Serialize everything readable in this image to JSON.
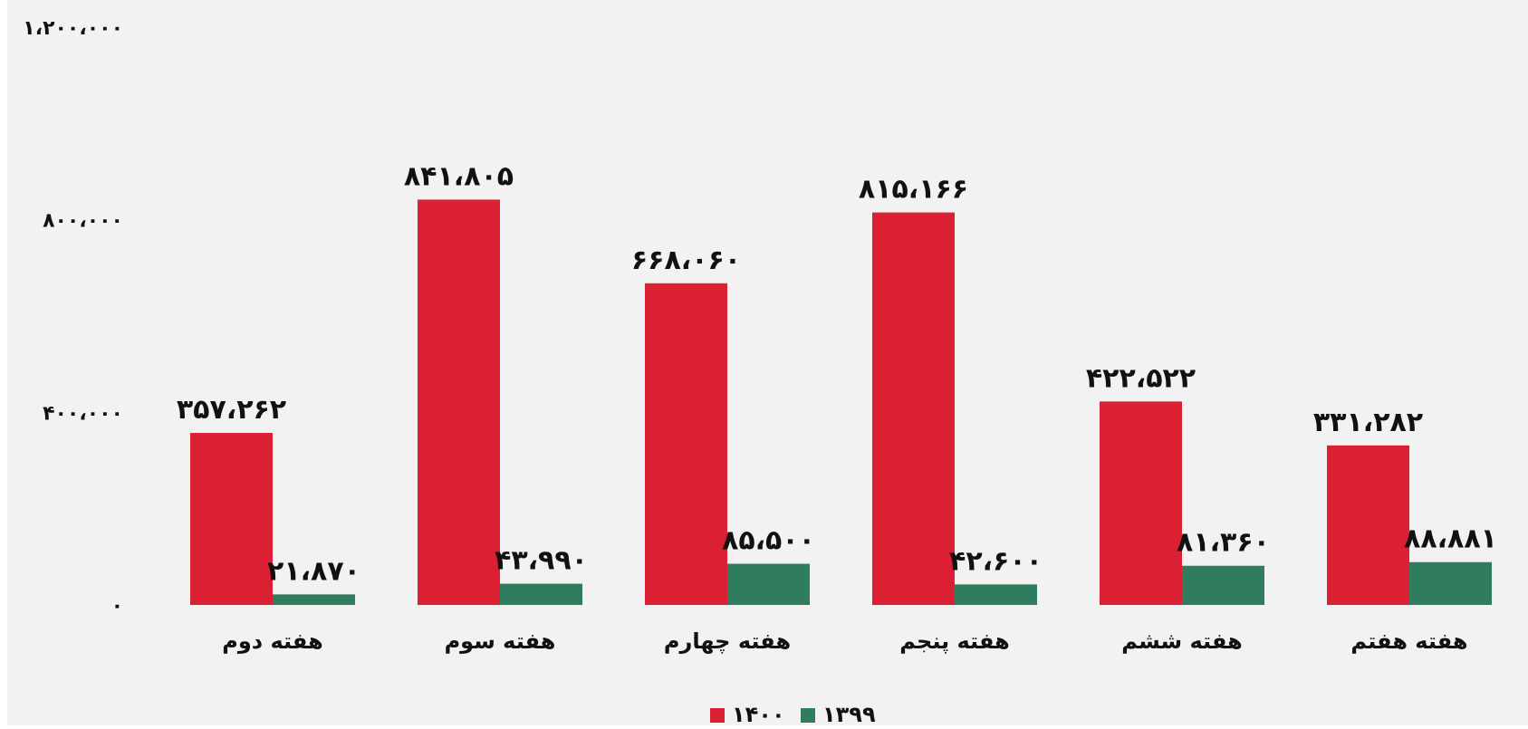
{
  "chart_data": {
    "type": "bar",
    "title": "",
    "xlabel": "",
    "ylabel": "",
    "categories": [
      "هفته دوم",
      "هفته سوم",
      "هفته چهارم",
      "هفته پنجم",
      "هفته ششم",
      "هفته هفتم"
    ],
    "series": [
      {
        "name": "۱۴۰۰",
        "color": "#dc2033",
        "values": [
          357262,
          841805,
          668060,
          815166,
          422522,
          331282
        ],
        "labels": [
          "۳۵۷،۲۶۲",
          "۸۴۱،۸۰۵",
          "۶۶۸،۰۶۰",
          "۸۱۵،۱۶۶",
          "۴۲۲،۵۲۲",
          "۳۳۱،۲۸۲"
        ]
      },
      {
        "name": "۱۳۹۹",
        "color": "#2f7d5e",
        "values": [
          21870,
          43990,
          85500,
          42600,
          81360,
          88881
        ],
        "labels": [
          "۲۱،۸۷۰",
          "۴۳،۹۹۰",
          "۸۵،۵۰۰",
          "۴۲،۶۰۰",
          "۸۱،۳۶۰",
          "۸۸،۸۸۱"
        ]
      }
    ],
    "ylim": [
      0,
      1200000
    ],
    "yticks": [
      0,
      400000,
      800000,
      1200000
    ],
    "ytick_labels": [
      "۰",
      "۴۰۰،۰۰۰",
      "۸۰۰،۰۰۰",
      "۱،۲۰۰،۰۰۰"
    ],
    "grid": false,
    "legend": {
      "placement": "bottom-center",
      "entries": [
        {
          "name": "۱۴۰۰",
          "color": "#dc2033"
        },
        {
          "name": "۱۳۹۹",
          "color": "#2f7d5e"
        }
      ]
    }
  }
}
